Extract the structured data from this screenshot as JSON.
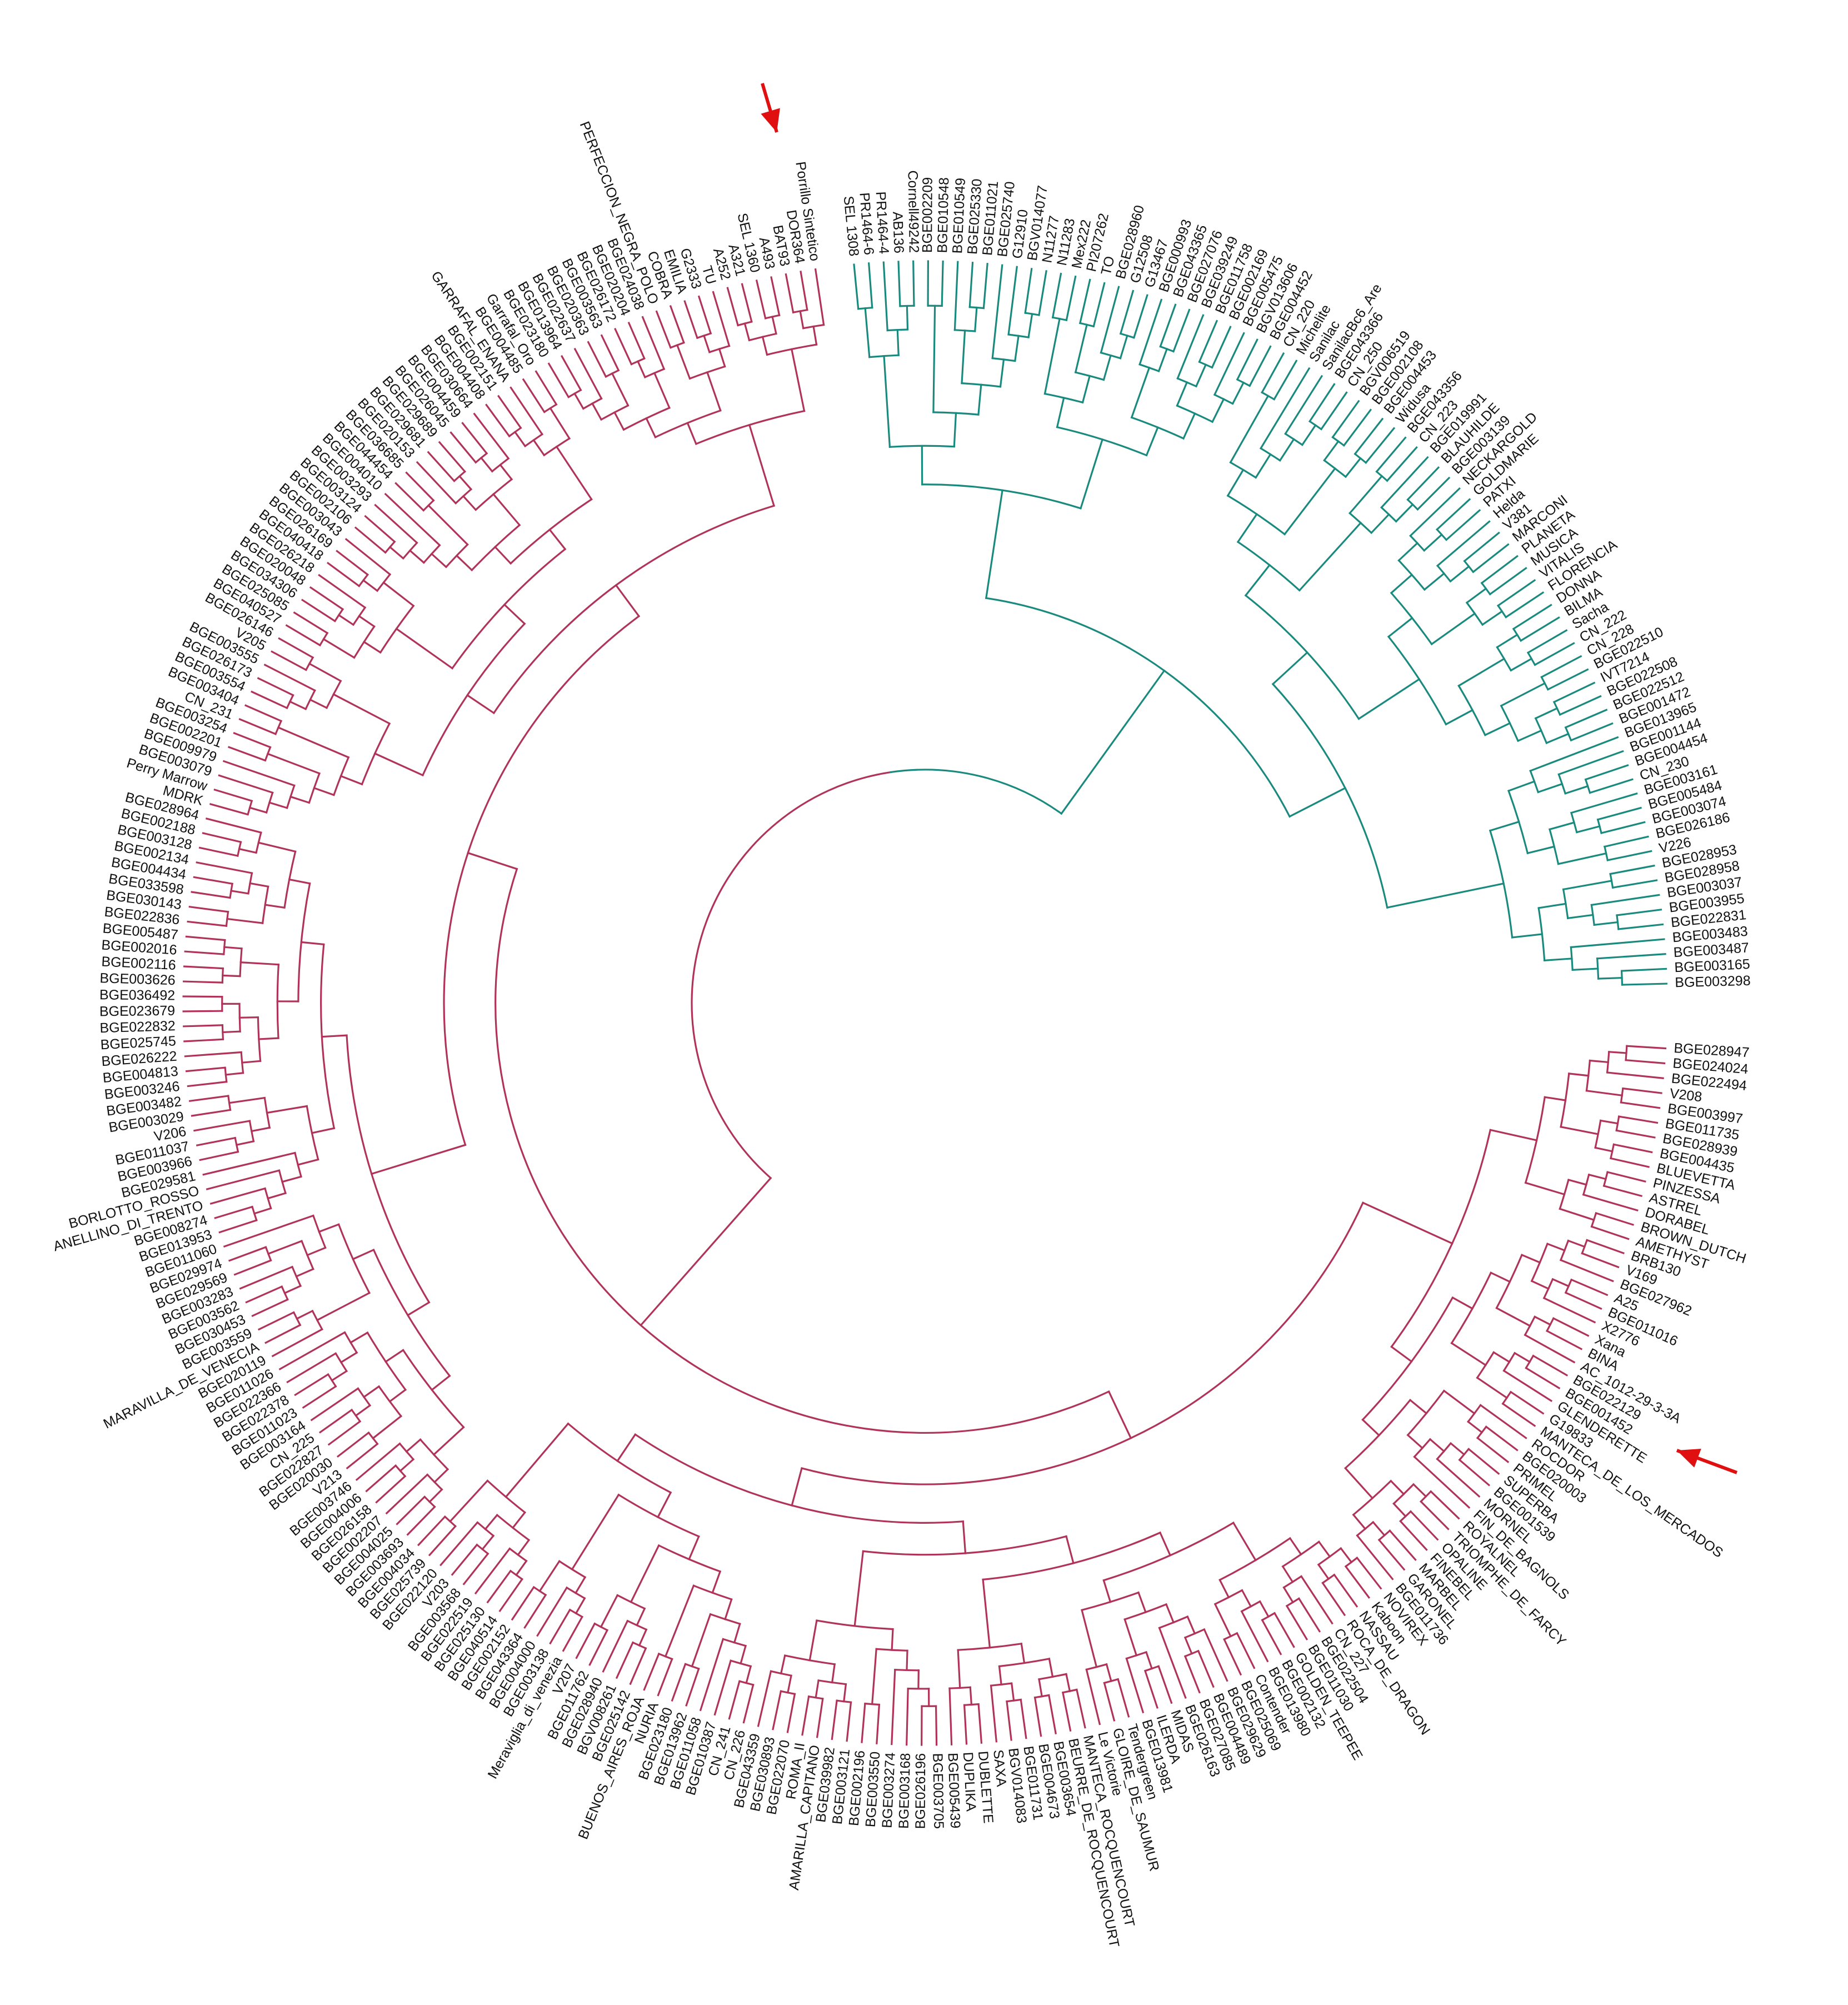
{
  "tree": {
    "colors": {
      "andean": "#1a8a7e",
      "mesoamerican": "#b0335a",
      "arrow": "#e01010",
      "label": "#111111"
    },
    "andean_leaves": [
      "Porrillo Sintetico",
      "DOR364",
      "BAT93",
      "A493",
      "SEL 1360",
      "A321",
      "A252",
      "TU",
      "G2333",
      "EMILIA",
      "COBRA",
      "PERFECCION_NEGRA_POLO",
      "BGE024038",
      "BGE020204",
      "BGE026172",
      "BGE003563",
      "BGE020363",
      "BGE022637",
      "BGE013964",
      "BGE023180",
      "Garrafal_Oro",
      "BGE004485",
      "GARRAFAL_ENANA",
      "BGE002151",
      "BGE004408",
      "BGE030664",
      "BGE004459",
      "BGE026045",
      "BGE029689",
      "BGE029681",
      "BGE020153",
      "BGE036685",
      "BGE044454",
      "BGE004010",
      "BGE003293",
      "BGE003124",
      "BGE002106",
      "BGE003043",
      "BGE026169",
      "BGE040418",
      "BGE026218",
      "BGE020048",
      "BGE034306",
      "BGE025085",
      "BGE040527",
      "BGE026146",
      "V205",
      "BGE003555",
      "BGE026173",
      "BGE003554",
      "BGE003404",
      "CN_231",
      "BGE003254",
      "BGE002201",
      "BGE009979",
      "BGE003079",
      "Perry Marrow",
      "MDRK",
      "BGE028964",
      "BGE002188",
      "BGE003128",
      "BGE002134",
      "BGE004434",
      "BGE033598",
      "BGE030143",
      "BGE022836",
      "BGE005487",
      "BGE002016",
      "BGE002116",
      "BGE003626",
      "BGE036492",
      "BGE023679",
      "BGE022832",
      "BGE025745",
      "BGE026222",
      "BGE004813",
      "BGE003246",
      "BGE003482",
      "BGE003029",
      "V206",
      "BGE011037",
      "BGE003966",
      "BGE029581",
      "BORLOTTO_ROSSO",
      "ANELLINO_DI_TRENTO",
      "BGE008274",
      "BGE013953",
      "BGE011060",
      "BGE029974",
      "BGE029569",
      "BGE003283",
      "BGE003562",
      "BGE030453",
      "BGE003559",
      "MARAVILLA_DE_VENECIA",
      "BGE020119",
      "BGE011026",
      "BGE022366",
      "BGE022378",
      "BGE011023",
      "BGE003164",
      "CN_225",
      "BGE022827",
      "BGE020030",
      "V213",
      "BGE003746",
      "BGE004006",
      "BGE026158",
      "BGE002207",
      "BGE004025",
      "BGE003693",
      "BGE004034",
      "BGE025739",
      "BGE022120",
      "V203",
      "BGE003568",
      "BGE022519",
      "BGE025130",
      "BGE040514",
      "BGE002152",
      "BGE043364",
      "BGE004000",
      "BGE003138",
      "Meraviglia_di_venezia",
      "V207",
      "BGE011762",
      "BGE028940",
      "BGV008261",
      "BGE025142",
      "BUENOS_AIRES_ROJA",
      "NURIA",
      "BGE023180",
      "BGE013962",
      "BGE011058",
      "BGE010387",
      "CN_241",
      "CN_226",
      "BGE043359",
      "BGE030893",
      "BGE022070",
      "ROMA_II",
      "AMARILLA_CAPITANO",
      "BGE039982",
      "BGE003121",
      "BGE002196",
      "BGE003550",
      "BGE003274",
      "BGE003168",
      "BGE026196",
      "BGE003705",
      "BGE005439",
      "DUPLIKA",
      "DUBLETTE",
      "SAXA",
      "BGV014083",
      "BGE011731",
      "BGE004673",
      "BGE003654",
      "BEURRE_DE_ROCQUENCOURT",
      "MANTECA_ROCQUENCOURT",
      "Le Victorie",
      "GLOIRE_DE_SAUMUR",
      "Tendergreen",
      "BGE013981",
      "ILERDA",
      "MIDAS",
      "BGE026163",
      "BGE027085",
      "BGE004489",
      "BGE029629",
      "BGE025069",
      "Contender",
      "BGE013980",
      "BGE002132",
      "GOLDEN_TEEPEE",
      "BGE011030",
      "BGE022504",
      "CN_227",
      "ROCA_DE_DRAGON",
      "NASSAU",
      "Kaboon",
      "NOVIREX",
      "BGE011736",
      "GARONEL",
      "MARBEL",
      "FINEBEL",
      "OPALINE",
      "TRIOMPHE_DE_FARCY",
      "ROYALNEL",
      "FIN_DE_BAGNOLS",
      "MORNEL",
      "BGE001539",
      "SUPERBA",
      "PRIMEL",
      "BGE020003",
      "ROCDOR",
      "MANTECA_DE_LOS_MERCADOS",
      "G19833",
      "GLENDERETTE",
      "BGE001452",
      "BGE022129",
      "AC_1012-29-3-3A",
      "BINA",
      "Xana",
      "X2776",
      "BGE011016",
      "A25",
      "BGE027962",
      "V169",
      "BRB130",
      "AMETHYST",
      "BROWN_DUTCH",
      "DORABEL",
      "ASTREL",
      "PINZESSA",
      "BLUEVETTA",
      "BGE004435",
      "BGE028939",
      "BGE011735",
      "BGE003997",
      "V208",
      "BGE022494",
      "BGE024024",
      "BGE028947"
    ],
    "meso_leaves": [
      "SEL 1308",
      "PR1464-6",
      "PR1464-4",
      "AB136",
      "Cornell49242",
      "BGE002209",
      "BGE010548",
      "BGE010549",
      "BGE025330",
      "BGE011021",
      "BGE025740",
      "G12910",
      "BGV014077",
      "N11277",
      "N11283",
      "Mex222",
      "PI207262",
      "TO",
      "BGE028960",
      "G12508",
      "G13467",
      "BGE000993",
      "BGE043365",
      "BGE027076",
      "BGE039249",
      "BGE011758",
      "BGE002169",
      "BGE005475",
      "BGV013606",
      "BGE004452",
      "CN_220",
      "Michelite",
      "Sanilac",
      "SanilacBc6_Are",
      "BGE043366",
      "CN_250",
      "BGV006519",
      "BGE002108",
      "BGE004453",
      "Widusa",
      "BGE043356",
      "CN_223",
      "BGE019991",
      "BLAUHILDE",
      "BGE003139",
      "NECKARGOLD",
      "GOLDMARIE",
      "PATXI",
      "Helda",
      "V381",
      "MARCONI",
      "PLANETA",
      "MUSICA",
      "VITALIS",
      "FLORENCIA",
      "DONNA",
      "BILMA",
      "Sacha",
      "CN_222",
      "CN_228",
      "BGE022510",
      "IVT7214",
      "BGE022508",
      "BGE022512",
      "BGE001472",
      "BGE013965",
      "BGE001144",
      "BGE004454",
      "CN_230",
      "BGE003161",
      "BGE005484",
      "BGE003074",
      "BGE026186",
      "V226",
      "BGE028953",
      "BGE028958",
      "BGE003037",
      "BGE003955",
      "BGE022831",
      "BGE003483",
      "BGE003487",
      "BGE003165",
      "BGE003298"
    ]
  }
}
